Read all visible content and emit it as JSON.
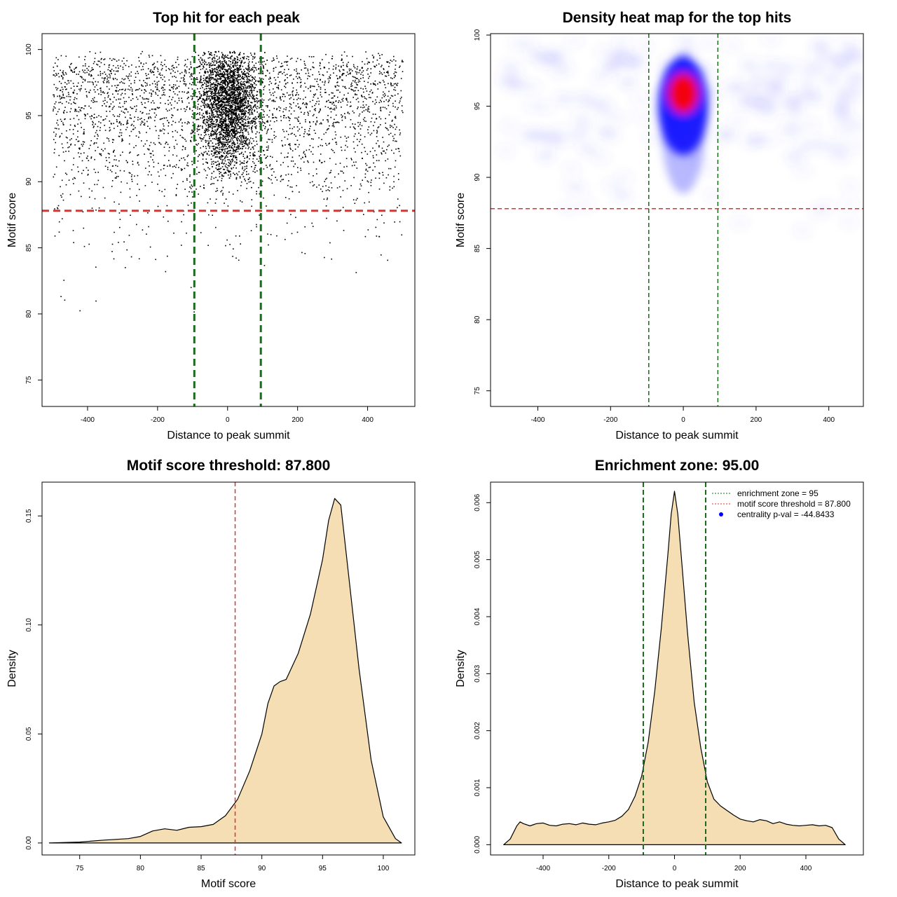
{
  "colors": {
    "enrichment_line": "#1a6b1a",
    "threshold_line": "#e03030",
    "density_fill": "#f5deb3",
    "points": "#000000",
    "heat_low": "#ffffff",
    "heat_mid": "#0000ff",
    "heat_high": "#ff0000",
    "legend_pval": "#0000ff"
  },
  "chart_data": [
    {
      "type": "scatter",
      "title": "Top hit for each peak",
      "xlabel": "Distance to peak summit",
      "ylabel": "Motif score",
      "xlim": [
        -530,
        535
      ],
      "ylim": [
        73.0,
        101.2
      ],
      "xticks": [
        -400,
        -200,
        0,
        200,
        400
      ],
      "yticks": [
        75,
        80,
        85,
        90,
        95,
        100
      ],
      "xtick_labels": [
        "-400",
        "-200",
        "0",
        "200",
        "400"
      ],
      "ytick_labels": [
        "75",
        "80",
        "85",
        "90",
        "95",
        "100"
      ],
      "x_range": [
        -500,
        500
      ],
      "y_range": [
        74,
        100
      ],
      "center_cluster": {
        "x_center": 0,
        "y_center": 96,
        "x_spread": 40,
        "y_spread": 2.5
      },
      "vlines": [
        -95,
        95
      ],
      "hline": 87.8
    },
    {
      "type": "heatmap",
      "title": "Density heat map for the top hits",
      "xlabel": "Distance to peak summit",
      "ylabel": "Motif score",
      "xlim": [
        -530,
        495
      ],
      "ylim": [
        73.9,
        100.1
      ],
      "xticks": [
        -400,
        -200,
        0,
        200,
        400
      ],
      "yticks": [
        75,
        80,
        85,
        90,
        95,
        100
      ],
      "xtick_labels": [
        "-400",
        "-200",
        "0",
        "200",
        "400"
      ],
      "ytick_labels": [
        "75",
        "80",
        "85",
        "90",
        "95",
        "100"
      ],
      "hotspot": {
        "x": 0,
        "y": 96
      },
      "vlines": [
        -95,
        95
      ],
      "hline": 87.8
    },
    {
      "type": "area",
      "title": "Motif score threshold: 87.800",
      "xlabel": "Motif score",
      "ylabel": "Density",
      "xlim": [
        71.9,
        102.6
      ],
      "ylim": [
        -0.0055,
        0.1655
      ],
      "xticks": [
        75,
        80,
        85,
        90,
        95,
        100
      ],
      "yticks": [
        0.0,
        0.05,
        0.1,
        0.15
      ],
      "xtick_labels": [
        "75",
        "80",
        "85",
        "90",
        "95",
        "100"
      ],
      "ytick_labels": [
        "0.00",
        "0.05",
        "0.10",
        "0.15"
      ],
      "x": [
        72.5,
        75,
        77,
        79,
        80,
        81,
        82,
        83,
        84,
        85,
        86,
        87,
        88,
        89,
        90,
        90.5,
        91,
        91.5,
        92,
        93,
        94,
        95,
        95.5,
        96,
        96.5,
        97,
        98,
        99,
        100,
        101,
        101.5
      ],
      "y": [
        0.0,
        0.0004,
        0.0013,
        0.002,
        0.003,
        0.0055,
        0.0065,
        0.0058,
        0.0072,
        0.0075,
        0.0085,
        0.0125,
        0.02,
        0.033,
        0.05,
        0.064,
        0.072,
        0.074,
        0.075,
        0.087,
        0.105,
        0.13,
        0.148,
        0.158,
        0.155,
        0.13,
        0.08,
        0.038,
        0.012,
        0.002,
        0.0
      ],
      "vline": 87.8
    },
    {
      "type": "area",
      "title": "Enrichment zone: 95.00",
      "xlabel": "Distance to peak summit",
      "ylabel": "Density",
      "xlim": [
        -560,
        575
      ],
      "ylim": [
        -0.00018,
        0.00636
      ],
      "xticks": [
        -400,
        -200,
        0,
        200,
        400
      ],
      "yticks": [
        0.0,
        0.001,
        0.002,
        0.003,
        0.004,
        0.005,
        0.006
      ],
      "xtick_labels": [
        "-400",
        "-200",
        "0",
        "200",
        "400"
      ],
      "ytick_labels": [
        "0.000",
        "0.001",
        "0.002",
        "0.003",
        "0.004",
        "0.005",
        "0.006"
      ],
      "x": [
        -520,
        -500,
        -480,
        -470,
        -460,
        -440,
        -420,
        -400,
        -380,
        -360,
        -340,
        -320,
        -300,
        -280,
        -260,
        -240,
        -220,
        -200,
        -180,
        -160,
        -140,
        -120,
        -100,
        -80,
        -60,
        -40,
        -20,
        -10,
        0,
        10,
        20,
        40,
        60,
        80,
        100,
        120,
        140,
        160,
        180,
        200,
        220,
        240,
        260,
        280,
        300,
        320,
        340,
        360,
        380,
        400,
        420,
        440,
        460,
        480,
        500,
        520
      ],
      "y": [
        0.0,
        0.0001,
        0.00033,
        0.0004,
        0.00037,
        0.00033,
        0.00037,
        0.00038,
        0.00034,
        0.00033,
        0.00036,
        0.00037,
        0.00035,
        0.00038,
        0.00036,
        0.00035,
        0.00038,
        0.0004,
        0.00043,
        0.0005,
        0.00062,
        0.00085,
        0.0012,
        0.0018,
        0.0027,
        0.0038,
        0.0051,
        0.0058,
        0.0062,
        0.0058,
        0.0051,
        0.0037,
        0.0025,
        0.0017,
        0.0011,
        0.0008,
        0.00068,
        0.0006,
        0.00052,
        0.00045,
        0.00042,
        0.0004,
        0.00044,
        0.00042,
        0.00037,
        0.0004,
        0.00036,
        0.00034,
        0.00033,
        0.00034,
        0.00035,
        0.00033,
        0.00034,
        0.0003,
        0.0001,
        0.0
      ],
      "vlines": [
        -95,
        95
      ],
      "legend": [
        {
          "label": "enrichment zone = 95",
          "style": "dotted-green"
        },
        {
          "label": "motif score threshold = 87.800",
          "style": "dotted-red"
        },
        {
          "label": "centrality p-val = -44.8433",
          "style": "dot-blue"
        }
      ]
    }
  ]
}
